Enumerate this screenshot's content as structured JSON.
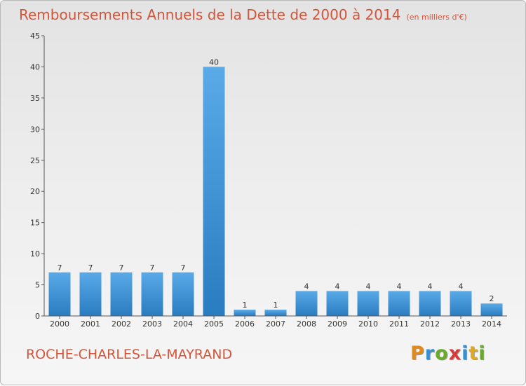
{
  "title": "Remboursements Annuels de la Dette de 2000 à 2014",
  "unit": "(en milliers d'€)",
  "commune": "ROCHE-CHARLES-LA-MAYRAND",
  "logo": {
    "letters": [
      "P",
      "r",
      "o",
      "x",
      "i",
      "t",
      "i"
    ],
    "colors": [
      "#e08a1e",
      "#3a8fd0",
      "#6aaa2a",
      "#d63c3c",
      "#3a8fd0",
      "#e0a81e",
      "#6aaa2a"
    ]
  },
  "colors": {
    "title": "#d5553a",
    "bar_top": "#5aaae8",
    "bar_bottom": "#2a7cc0",
    "axis": "#555555"
  },
  "chart_data": {
    "type": "bar",
    "categories": [
      "2000",
      "2001",
      "2002",
      "2003",
      "2004",
      "2005",
      "2006",
      "2007",
      "2008",
      "2009",
      "2010",
      "2011",
      "2012",
      "2013",
      "2014"
    ],
    "values": [
      7,
      7,
      7,
      7,
      7,
      40,
      1,
      1,
      4,
      4,
      4,
      4,
      4,
      4,
      2
    ],
    "data_labels": [
      "7",
      "7",
      "7",
      "7",
      "7",
      "40",
      "1",
      "1",
      "4",
      "4",
      "4",
      "4",
      "4",
      "4",
      "2"
    ],
    "ylim": [
      0,
      45
    ],
    "yticks": [
      0,
      5,
      10,
      15,
      20,
      25,
      30,
      35,
      40,
      45
    ],
    "grid": false,
    "legend": "none"
  }
}
